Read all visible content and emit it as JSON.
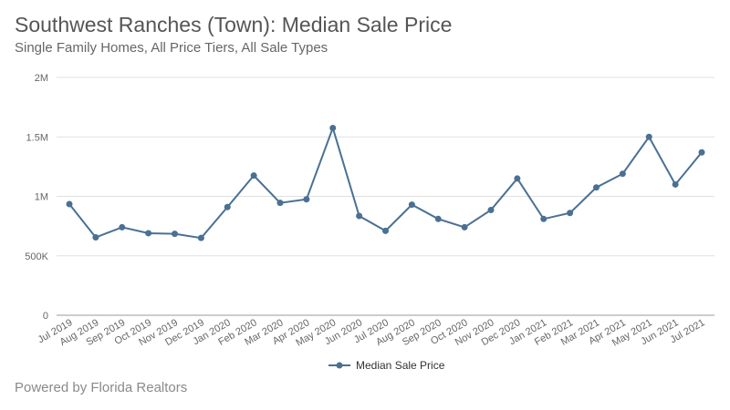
{
  "title": "Southwest Ranches (Town): Median Sale Price",
  "subtitle": "Single Family Homes, All Price Tiers, All Sale Types",
  "footer": "Powered by Florida Realtors",
  "colors": {
    "series": "#4a7094",
    "grid": "#e0e0e0",
    "axis": "#999999"
  },
  "chart_data": {
    "type": "line",
    "title": "Southwest Ranches (Town): Median Sale Price",
    "subtitle": "Single Family Homes, All Price Tiers, All Sale Types",
    "xlabel": "",
    "ylabel": "",
    "ylim": [
      0,
      2000000
    ],
    "grid": true,
    "legend": "bottom-center",
    "categories": [
      "Jul 2019",
      "Aug 2019",
      "Sep 2019",
      "Oct 2019",
      "Nov 2019",
      "Dec 2019",
      "Jan 2020",
      "Feb 2020",
      "Mar 2020",
      "Apr 2020",
      "May 2020",
      "Jun 2020",
      "Jul 2020",
      "Aug 2020",
      "Sep 2020",
      "Oct 2020",
      "Nov 2020",
      "Dec 2020",
      "Jan 2021",
      "Feb 2021",
      "Mar 2021",
      "Apr 2021",
      "May 2021",
      "Jun 2021",
      "Jul 2021"
    ],
    "y_ticks": [
      {
        "value": 0,
        "label": "0"
      },
      {
        "value": 500000,
        "label": "500K"
      },
      {
        "value": 1000000,
        "label": "1M"
      },
      {
        "value": 1500000,
        "label": "1.5M"
      },
      {
        "value": 2000000,
        "label": "2M"
      }
    ],
    "series": [
      {
        "name": "Median Sale Price",
        "values": [
          935000,
          655000,
          740000,
          690000,
          685000,
          650000,
          910000,
          1175000,
          945000,
          975000,
          1575000,
          835000,
          710000,
          930000,
          810000,
          740000,
          885000,
          1150000,
          810000,
          860000,
          1075000,
          1190000,
          1500000,
          1100000,
          1370000
        ]
      }
    ]
  }
}
